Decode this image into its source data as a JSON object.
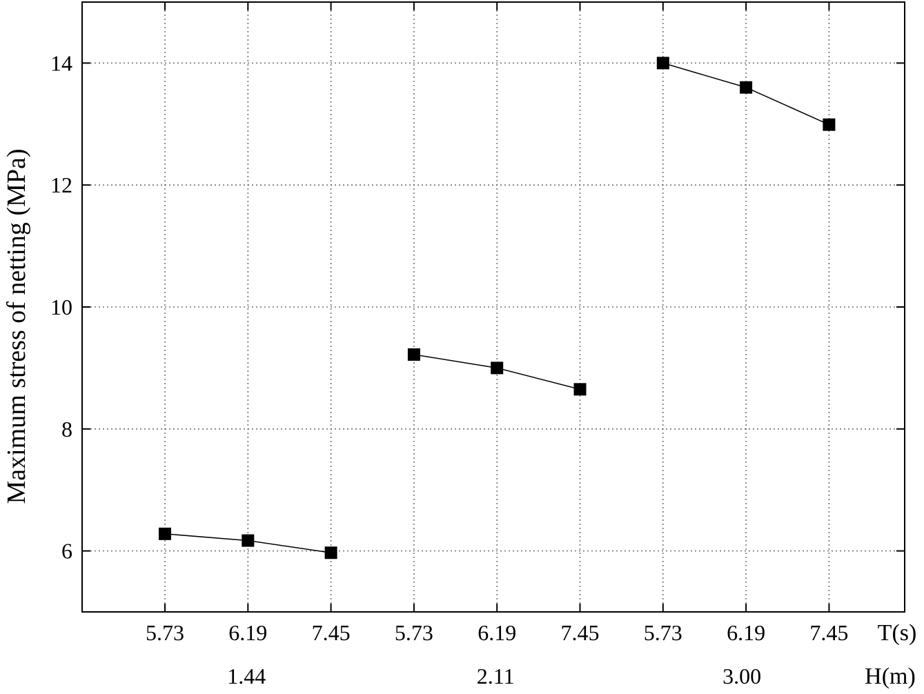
{
  "chart_data": {
    "type": "line",
    "ylabel": "Maximum stress of netting (MPa)",
    "ylim": [
      5,
      15
    ],
    "yticks": [
      "6",
      "8",
      "10",
      "12",
      "14"
    ],
    "ytick_values": [
      6,
      8,
      10,
      12,
      14
    ],
    "x_axis_name": "T(s)",
    "group_axis_name": "H(m)",
    "categories": [
      "5.73",
      "6.19",
      "7.45",
      "5.73",
      "6.19",
      "7.45",
      "5.73",
      "6.19",
      "7.45"
    ],
    "groups": [
      "1.44",
      "2.11",
      "3.00"
    ],
    "grid": true,
    "series": [
      {
        "group": "1.44",
        "x": [
          "5.73",
          "6.19",
          "7.45"
        ],
        "values": [
          6.28,
          6.17,
          5.97
        ]
      },
      {
        "group": "2.11",
        "x": [
          "5.73",
          "6.19",
          "7.45"
        ],
        "values": [
          9.22,
          9.0,
          8.65
        ]
      },
      {
        "group": "3.00",
        "x": [
          "5.73",
          "6.19",
          "7.45"
        ],
        "values": [
          14.0,
          13.6,
          12.99
        ]
      }
    ],
    "marker": "square",
    "colors": {
      "marker": "#000000",
      "line": "#000000",
      "grid": "#555555"
    }
  }
}
